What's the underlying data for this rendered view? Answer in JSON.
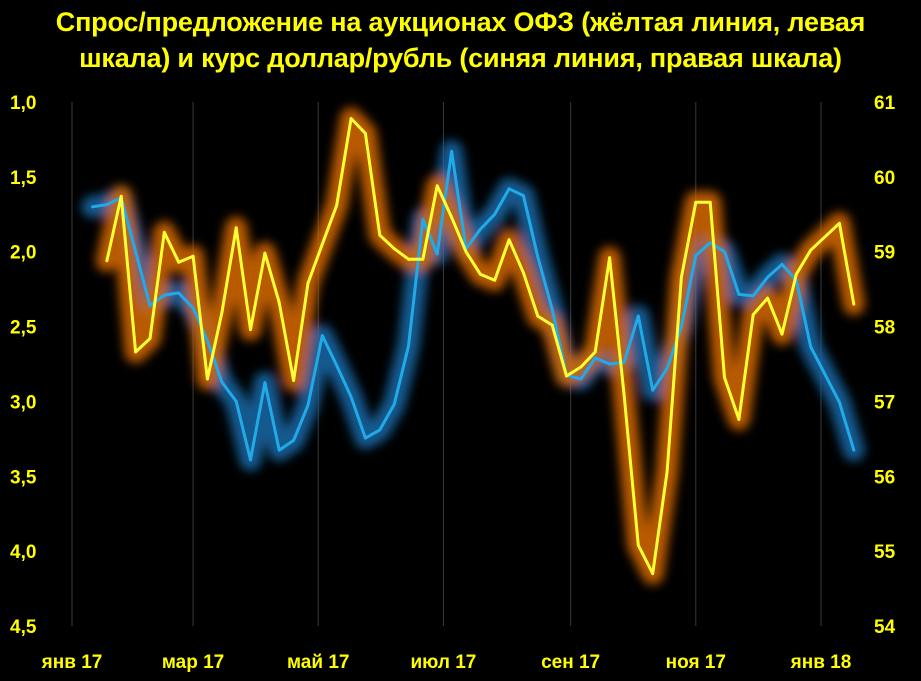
{
  "title_lines": [
    "Спрос/предложение на аукционах ОФЗ (жёлтая линия, левая",
    "шкала) и курс доллар/рубль (синяя линия, правая шкала)"
  ],
  "colors": {
    "background": "#000000",
    "text": "#FFFF00",
    "yellow_series": "#FFFF33",
    "yellow_glow": "#D86A00",
    "blue_series": "#22AAE8",
    "blue_glow": "#1B6AA8",
    "grid": "#3A3A3A"
  },
  "chart_data": {
    "type": "line",
    "title": "Спрос/предложение на аукционах ОФЗ (жёлтая линия, левая шкала) и курс доллар/рубль (синяя линия, правая шкала)",
    "x_tick_labels": [
      "янв 17",
      "мар 17",
      "май 17",
      "июл 17",
      "сен 17",
      "ноя 17",
      "янв 18"
    ],
    "y_left": {
      "ticks": [
        "1,0",
        "1,5",
        "2,0",
        "2,5",
        "3,0",
        "3,5",
        "4,0",
        "4,5"
      ],
      "range": [
        1.0,
        4.5
      ],
      "inverted": true
    },
    "y_right": {
      "ticks": [
        "61",
        "60",
        "59",
        "58",
        "57",
        "56",
        "55",
        "54"
      ],
      "range": [
        54,
        61
      ]
    },
    "grid": {
      "vertical": true,
      "horizontal": false
    },
    "series": [
      {
        "axis": "left",
        "color": "yellow",
        "x": [
          "2017-01-18",
          "2017-01-25",
          "2017-02-01",
          "2017-02-08",
          "2017-02-15",
          "2017-02-22",
          "2017-03-01",
          "2017-03-08",
          "2017-03-15",
          "2017-03-22",
          "2017-03-29",
          "2017-04-05",
          "2017-04-12",
          "2017-04-19",
          "2017-04-26",
          "2017-05-03",
          "2017-05-10",
          "2017-05-17",
          "2017-05-24",
          "2017-05-31",
          "2017-06-07",
          "2017-06-14",
          "2017-06-21",
          "2017-06-28",
          "2017-07-05",
          "2017-07-12",
          "2017-07-19",
          "2017-07-26",
          "2017-08-02",
          "2017-08-09",
          "2017-08-16",
          "2017-08-23",
          "2017-08-30",
          "2017-09-06",
          "2017-09-13",
          "2017-09-20",
          "2017-09-27",
          "2017-10-04",
          "2017-10-11",
          "2017-10-18",
          "2017-10-25",
          "2017-11-01",
          "2017-11-08",
          "2017-11-15",
          "2017-11-22",
          "2017-11-29",
          "2017-12-06",
          "2017-12-13",
          "2017-12-20",
          "2017-12-27",
          "2018-01-10",
          "2018-01-17"
        ],
        "values": [
          2.06,
          1.63,
          2.67,
          2.58,
          1.87,
          2.07,
          2.03,
          2.85,
          2.41,
          1.84,
          2.52,
          2.01,
          2.34,
          2.86,
          2.21,
          1.95,
          1.69,
          1.11,
          1.21,
          1.89,
          1.98,
          2.05,
          2.05,
          1.56,
          1.77,
          2.0,
          2.15,
          2.19,
          1.92,
          2.14,
          2.43,
          2.49,
          2.83,
          2.77,
          2.67,
          2.04,
          2.95,
          3.96,
          4.15,
          3.47,
          2.17,
          1.67,
          1.67,
          2.84,
          3.12,
          2.42,
          2.31,
          2.55,
          2.15,
          1.99,
          1.81,
          2.35
        ]
      },
      {
        "axis": "right",
        "color": "blue",
        "x": [
          "2017-01-11",
          "2017-01-18",
          "2017-01-25",
          "2017-02-01",
          "2017-02-08",
          "2017-02-15",
          "2017-02-22",
          "2017-03-01",
          "2017-03-08",
          "2017-03-15",
          "2017-03-22",
          "2017-03-29",
          "2017-04-05",
          "2017-04-12",
          "2017-04-19",
          "2017-04-26",
          "2017-05-03",
          "2017-05-10",
          "2017-05-17",
          "2017-05-24",
          "2017-05-31",
          "2017-06-07",
          "2017-06-14",
          "2017-06-21",
          "2017-06-28",
          "2017-07-05",
          "2017-07-12",
          "2017-07-19",
          "2017-07-26",
          "2017-08-02",
          "2017-08-09",
          "2017-08-16",
          "2017-08-23",
          "2017-08-30",
          "2017-09-06",
          "2017-09-13",
          "2017-09-20",
          "2017-09-27",
          "2017-10-04",
          "2017-10-11",
          "2017-10-18",
          "2017-10-25",
          "2017-11-01",
          "2017-11-08",
          "2017-11-15",
          "2017-11-22",
          "2017-11-29",
          "2017-12-06",
          "2017-12-13",
          "2017-12-20",
          "2017-12-27",
          "2018-01-10",
          "2018-01-17"
        ],
        "values": [
          59.6,
          59.63,
          59.72,
          59.0,
          58.28,
          58.42,
          58.45,
          58.25,
          57.81,
          57.26,
          57.0,
          56.22,
          57.25,
          56.35,
          56.48,
          56.95,
          57.88,
          57.48,
          57.06,
          56.51,
          56.62,
          56.96,
          57.74,
          59.43,
          58.97,
          60.34,
          59.04,
          59.3,
          59.5,
          59.84,
          59.75,
          58.93,
          58.23,
          57.35,
          57.3,
          57.58,
          57.5,
          57.52,
          58.14,
          57.15,
          57.44,
          58.0,
          58.95,
          59.12,
          59.0,
          58.43,
          58.41,
          58.66,
          58.83,
          58.62,
          57.73,
          56.99,
          56.35
        ]
      }
    ]
  }
}
